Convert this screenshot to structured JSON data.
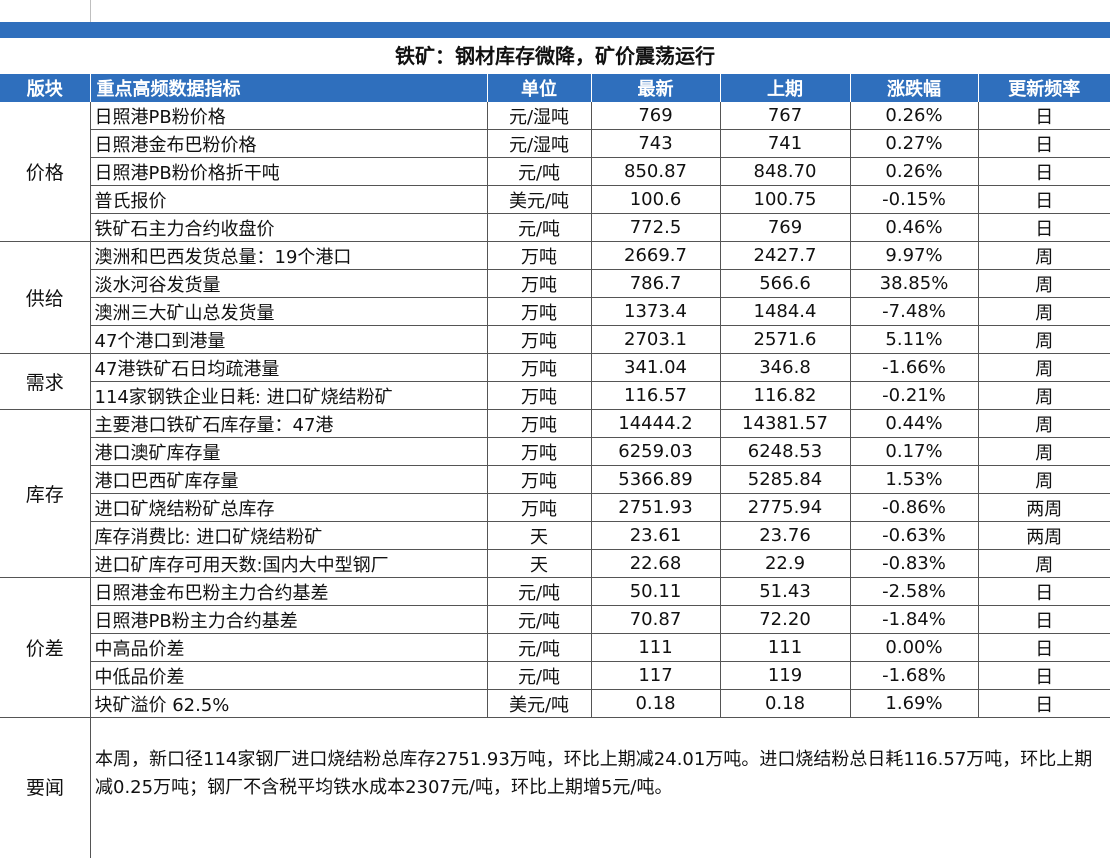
{
  "title": "铁矿：钢材库存微降，矿价震荡运行",
  "headers": [
    "版块",
    "重点高频数据指标",
    "单位",
    "最新",
    "上期",
    "涨跌幅",
    "更新频率"
  ],
  "sections": [
    {
      "category": "价格",
      "rows": [
        {
          "indicator": "日照港PB粉价格",
          "unit": "元/湿吨",
          "latest": "769",
          "previous": "767",
          "change": "0.26%",
          "freq": "日"
        },
        {
          "indicator": "日照港金布巴粉价格",
          "unit": "元/湿吨",
          "latest": "743",
          "previous": "741",
          "change": "0.27%",
          "freq": "日"
        },
        {
          "indicator": "日照港PB粉价格折干吨",
          "unit": "元/吨",
          "latest": "850.87",
          "previous": "848.70",
          "change": "0.26%",
          "freq": "日"
        },
        {
          "indicator": "普氏报价",
          "unit": "美元/吨",
          "latest": "100.6",
          "previous": "100.75",
          "change": "-0.15%",
          "freq": "日"
        },
        {
          "indicator": "铁矿石主力合约收盘价",
          "unit": "元/吨",
          "latest": "772.5",
          "previous": "769",
          "change": "0.46%",
          "freq": "日"
        }
      ]
    },
    {
      "category": "供给",
      "rows": [
        {
          "indicator": "澳洲和巴西发货总量：19个港口",
          "unit": "万吨",
          "latest": "2669.7",
          "previous": "2427.7",
          "change": "9.97%",
          "freq": "周"
        },
        {
          "indicator": "淡水河谷发货量",
          "unit": "万吨",
          "latest": "786.7",
          "previous": "566.6",
          "change": "38.85%",
          "freq": "周"
        },
        {
          "indicator": "澳洲三大矿山总发货量",
          "unit": "万吨",
          "latest": "1373.4",
          "previous": "1484.4",
          "change": "-7.48%",
          "freq": "周"
        },
        {
          "indicator": "47个港口到港量",
          "unit": "万吨",
          "latest": "2703.1",
          "previous": "2571.6",
          "change": "5.11%",
          "freq": "周"
        }
      ]
    },
    {
      "category": "需求",
      "rows": [
        {
          "indicator": "47港铁矿石日均疏港量",
          "unit": "万吨",
          "latest": "341.04",
          "previous": "346.8",
          "change": "-1.66%",
          "freq": "周"
        },
        {
          "indicator": "114家钢铁企业日耗: 进口矿烧结粉矿",
          "unit": "万吨",
          "latest": "116.57",
          "previous": "116.82",
          "change": "-0.21%",
          "freq": "周"
        }
      ]
    },
    {
      "category": "库存",
      "rows": [
        {
          "indicator": "主要港口铁矿石库存量：47港",
          "unit": "万吨",
          "latest": "14444.2",
          "previous": "14381.57",
          "change": "0.44%",
          "freq": "周"
        },
        {
          "indicator": "港口澳矿库存量",
          "unit": "万吨",
          "latest": "6259.03",
          "previous": "6248.53",
          "change": "0.17%",
          "freq": "周"
        },
        {
          "indicator": "港口巴西矿库存量",
          "unit": "万吨",
          "latest": "5366.89",
          "previous": "5285.84",
          "change": "1.53%",
          "freq": "周"
        },
        {
          "indicator": "进口矿烧结粉矿总库存",
          "unit": "万吨",
          "latest": "2751.93",
          "previous": "2775.94",
          "change": "-0.86%",
          "freq": "两周"
        },
        {
          "indicator": "库存消费比: 进口矿烧结粉矿",
          "unit": "天",
          "latest": "23.61",
          "previous": "23.76",
          "change": "-0.63%",
          "freq": "两周"
        },
        {
          "indicator": "进口矿库存可用天数:国内大中型钢厂",
          "unit": "天",
          "latest": "22.68",
          "previous": "22.9",
          "change": "-0.83%",
          "freq": "周"
        }
      ]
    },
    {
      "category": "价差",
      "rows": [
        {
          "indicator": "日照港金布巴粉主力合约基差",
          "unit": "元/吨",
          "latest": "50.11",
          "previous": "51.43",
          "change": "-2.58%",
          "freq": "日"
        },
        {
          "indicator": "日照港PB粉主力合约基差",
          "unit": "元/吨",
          "latest": "70.87",
          "previous": "72.20",
          "change": "-1.84%",
          "freq": "日"
        },
        {
          "indicator": "中高品价差",
          "unit": "元/吨",
          "latest": "111",
          "previous": "111",
          "change": "0.00%",
          "freq": "日"
        },
        {
          "indicator": "中低品价差",
          "unit": "元/吨",
          "latest": "117",
          "previous": "119",
          "change": "-1.68%",
          "freq": "日"
        },
        {
          "indicator": "块矿溢价 62.5%",
          "unit": "美元/吨",
          "latest": "0.18",
          "previous": "0.18",
          "change": "1.69%",
          "freq": "日"
        }
      ]
    }
  ],
  "news": {
    "label": "要闻",
    "text": "本周，新口径114家钢厂进口烧结粉总库存2751.93万吨，环比上期减24.01万吨。进口烧结粉总日耗116.57万吨，环比上期减0.25万吨；钢厂不含税平均铁水成本2307元/吨，环比上期增5元/吨。"
  },
  "colors": {
    "header_bg": "#2f6fbd",
    "header_text": "#ffffff",
    "grid_line": "#555555"
  }
}
